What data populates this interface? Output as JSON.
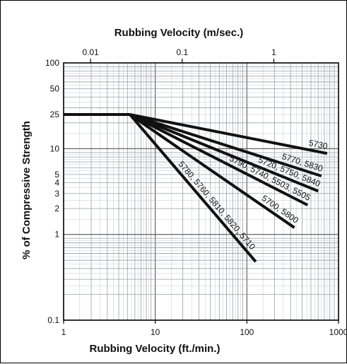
{
  "chart_data": {
    "type": "line",
    "x_axis": {
      "label": "Rubbing Velocity (ft./min.)",
      "scale": "log",
      "range": [
        1,
        1000
      ],
      "ticks": [
        "1",
        "10",
        "100",
        "1000"
      ],
      "tick_values": [
        1,
        10,
        100,
        1000
      ]
    },
    "x2_axis": {
      "label": "Rubbing Velocity (m/sec.)",
      "scale": "log",
      "ticks": [
        "0.01",
        "0.1",
        "1"
      ],
      "tick_values": [
        0.01,
        0.1,
        1
      ]
    },
    "y_axis": {
      "label": "% of Compressive Strength",
      "scale": "log",
      "range": [
        0.1,
        100
      ],
      "ticks": [
        "100",
        "50",
        "25",
        "10",
        "5",
        "4",
        "3",
        "2",
        "1",
        "0.1"
      ],
      "tick_values": [
        100,
        50,
        25,
        10,
        5,
        4,
        3,
        2,
        1,
        0.1
      ]
    },
    "grid": true,
    "plateau": {
      "x": [
        1,
        5.3
      ],
      "y": 25
    },
    "series": [
      {
        "name": "5730",
        "x": [
          5.3,
          750
        ],
        "y": [
          25,
          8.8
        ]
      },
      {
        "name": "5770, 5830",
        "x": [
          5.3,
          650
        ],
        "y": [
          25,
          4.8
        ]
      },
      {
        "name": "5720, 5750, 5840",
        "x": [
          5.3,
          600
        ],
        "y": [
          25,
          3.2
        ]
      },
      {
        "name": "5790, 5740, 5503, 5505",
        "x": [
          5.3,
          460
        ],
        "y": [
          25,
          2.2
        ]
      },
      {
        "name": "5700, 5800",
        "x": [
          5.3,
          330
        ],
        "y": [
          25,
          1.2
        ]
      },
      {
        "name": "5780, 5760, 5810, 5820, 5710",
        "x": [
          5.3,
          125
        ],
        "y": [
          25,
          0.48
        ]
      }
    ]
  }
}
